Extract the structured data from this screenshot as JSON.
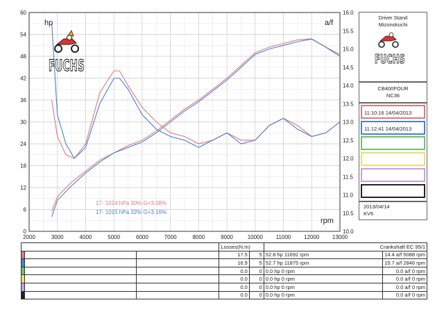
{
  "chart_data": {
    "type": "line",
    "xlim": [
      2000,
      13000
    ],
    "xticks": [
      "2000",
      "3000",
      "4000",
      "5000",
      "6000",
      "7000",
      "8000",
      "9000",
      "10000",
      "11000",
      "12000",
      "13000"
    ],
    "y_left": {
      "label": "hp",
      "lim": [
        0,
        60
      ],
      "ticks": [
        "0",
        "6",
        "12",
        "18",
        "24",
        "30",
        "36",
        "42",
        "48",
        "54",
        "60"
      ]
    },
    "y_right": {
      "label": "a/f",
      "lim": [
        10.0,
        16.0
      ],
      "ticks": [
        "10.0",
        "10.5",
        "11.0",
        "11.5",
        "12.0",
        "12.5",
        "13.0",
        "13.5",
        "14.0",
        "14.5",
        "15.0",
        "15.5",
        "16.0"
      ]
    },
    "x_unit_label": "rpm",
    "grid": true,
    "series": [
      {
        "name": "17- 1014 hPa 30% G=3.08%",
        "kind": "power",
        "axis": "left",
        "color": "#e07878",
        "x": [
          2800,
          3000,
          3500,
          4000,
          4500,
          5000,
          5500,
          6000,
          6500,
          7000,
          7500,
          8000,
          8500,
          9000,
          9500,
          10000,
          10500,
          11000,
          11500,
          12000,
          12500,
          13000
        ],
        "y": [
          5.5,
          9.5,
          13.5,
          16.5,
          19.5,
          21.5,
          23.5,
          25,
          27.5,
          30.5,
          33.5,
          36,
          39,
          42,
          45.5,
          49,
          50.5,
          51.5,
          52.5,
          52.8,
          50.5,
          48.5
        ]
      },
      {
        "name": "17- 1015 hPa 32% G=3.16%",
        "kind": "power",
        "axis": "left",
        "color": "#4a7fd0",
        "x": [
          2800,
          3000,
          3500,
          4000,
          4500,
          5000,
          5500,
          6000,
          6500,
          7000,
          7500,
          8000,
          8500,
          9000,
          9500,
          10000,
          10500,
          11000,
          11500,
          12000,
          12500,
          13000
        ],
        "y": [
          4,
          8.5,
          12.5,
          16,
          19,
          21.5,
          23,
          24.5,
          27,
          30,
          33,
          35.5,
          38.5,
          41.5,
          45,
          48.5,
          50,
          51,
          52,
          52.7,
          50.5,
          48
        ]
      },
      {
        "name": "17- 1014 hPa 30% G=3.08%",
        "kind": "af",
        "axis": "right",
        "color": "#e07878",
        "x": [
          2800,
          3000,
          3300,
          3600,
          4000,
          4500,
          5000,
          5200,
          5500,
          6000,
          6500,
          7000,
          7500,
          8000,
          8500,
          9000,
          9500,
          10000,
          10500,
          11000,
          11500,
          12000,
          12500,
          13000
        ],
        "y": [
          13.6,
          12.6,
          12.1,
          12.0,
          12.4,
          13.8,
          14.4,
          14.4,
          14.0,
          13.4,
          13.0,
          12.7,
          12.6,
          12.4,
          12.5,
          12.7,
          12.5,
          12.5,
          12.9,
          13.1,
          12.9,
          12.6,
          12.7,
          13.0
        ]
      },
      {
        "name": "17- 1015 hPa 32% G=3.16%",
        "kind": "af",
        "axis": "right",
        "color": "#4a7fd0",
        "x": [
          2800,
          3000,
          3300,
          3600,
          4000,
          4500,
          5000,
          5200,
          5500,
          6000,
          6500,
          7000,
          7500,
          8000,
          8500,
          9000,
          9500,
          10000,
          10500,
          11000,
          11500,
          12000,
          12500,
          13000
        ],
        "y": [
          15.7,
          13.2,
          12.4,
          12.0,
          12.3,
          13.5,
          14.2,
          14.2,
          13.9,
          13.2,
          12.8,
          12.6,
          12.5,
          12.3,
          12.5,
          12.7,
          12.4,
          12.5,
          12.9,
          13.1,
          12.8,
          12.6,
          12.7,
          13.0
        ]
      }
    ]
  },
  "brand": "FUCHS",
  "side_panel": {
    "title_line1": "Driver Stand",
    "title_line2": "Mizonokuchi",
    "model": "CB400FOUR",
    "code": "NC36",
    "runs": [
      {
        "time": "11:10:16",
        "date": "14/04/2013",
        "color": "#e07878"
      },
      {
        "time": "11:12:41",
        "date": "14/04/2013",
        "color": "#4a7fd0"
      },
      {
        "time": "",
        "date": "",
        "color": "#6cc070"
      },
      {
        "time": "",
        "date": "",
        "color": "#e8e070"
      },
      {
        "time": "",
        "date": "",
        "color": "#c7a0d8"
      },
      {
        "time": "",
        "date": "",
        "color": "#222222"
      }
    ],
    "footer_date": "2013/04/14",
    "footer_id": "KV6"
  },
  "table": {
    "header_losses": "Losses(N.m)",
    "header_crank": "Crankshaft EC 95/1",
    "rows": [
      {
        "color": "#e07878",
        "loss": "17.5",
        "n": "5",
        "peak": "52.8 hp 11692 rpm",
        "af": "14.4 a/f 5088 rpm"
      },
      {
        "color": "#4a7fd0",
        "loss": "16.9",
        "n": "5",
        "peak": "52.7 hp 11875 rpm",
        "af": "15.7 a/f 2846 rpm"
      },
      {
        "color": "#6cc070",
        "loss": "0.0",
        "n": "0",
        "peak": "0.0 hp 0 rpm",
        "af": "0.0 a/f 0 rpm"
      },
      {
        "color": "#e8e070",
        "loss": "0.0",
        "n": "0",
        "peak": "0.0 hp 0 rpm",
        "af": "0.0 a/f 0 rpm"
      },
      {
        "color": "#c7a0d8",
        "loss": "0.0",
        "n": "0",
        "peak": "0.0 hp 0 rpm",
        "af": "0.0 a/f 0 rpm"
      },
      {
        "color": "#222222",
        "loss": "0.0",
        "n": "0",
        "peak": "0.0 hp 0 rpm",
        "af": "0.0 a/f 0 rpm"
      }
    ]
  }
}
